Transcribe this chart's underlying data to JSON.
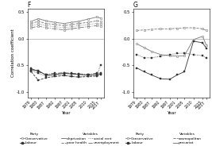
{
  "years": [
    1979,
    1983,
    1987,
    1992,
    1997,
    2001,
    2005,
    2010,
    2015,
    2017
  ],
  "panel_F_data": {
    "con_dep": [
      0.32,
      0.37,
      0.33,
      0.3,
      0.28,
      0.3,
      0.32,
      0.36,
      0.4,
      0.38
    ],
    "con_rent": [
      0.28,
      0.32,
      0.28,
      0.26,
      0.24,
      0.26,
      0.28,
      0.3,
      0.33,
      0.32
    ],
    "con_hlth": [
      0.24,
      0.27,
      0.24,
      0.22,
      0.2,
      0.22,
      0.24,
      0.26,
      0.28,
      0.27
    ],
    "con_unemp": [
      0.2,
      0.23,
      0.2,
      0.18,
      0.16,
      0.18,
      0.2,
      0.22,
      0.24,
      0.23
    ],
    "lab_dep": [
      -0.58,
      -0.6,
      -0.68,
      -0.67,
      -0.65,
      -0.66,
      -0.67,
      -0.68,
      -0.67,
      -0.66
    ],
    "lab_rent": [
      -0.62,
      -0.78,
      -0.73,
      -0.71,
      -0.69,
      -0.71,
      -0.72,
      -0.71,
      -0.7,
      -0.68
    ],
    "lab_hlth": [
      -0.6,
      -0.65,
      -0.7,
      -0.69,
      -0.68,
      -0.7,
      -0.71,
      -0.7,
      -0.69,
      -0.5
    ],
    "lab_unemp": [
      -0.56,
      -0.62,
      -0.67,
      -0.65,
      -0.64,
      -0.65,
      -0.66,
      -0.67,
      -0.65,
      -0.64
    ]
  },
  "panel_G_data": {
    "years_g": [
      1979,
      1983,
      1987,
      1992,
      1997,
      2001,
      2005,
      2010,
      2015,
      2017
    ],
    "con_cosm": [
      0.15,
      0.16,
      0.17,
      0.18,
      0.18,
      0.19,
      0.2,
      0.2,
      0.18,
      0.15
    ],
    "con_prec": [
      -0.1,
      -0.17,
      -0.24,
      -0.3,
      -0.32,
      -0.33,
      -0.32,
      -0.02,
      0.04,
      -0.12
    ],
    "lab_cosm": [
      -0.55,
      -0.62,
      -0.68,
      -0.75,
      -0.76,
      -0.68,
      -0.62,
      -0.05,
      -0.08,
      -0.18
    ],
    "lab_prec": [
      -0.3,
      -0.36,
      -0.36,
      -0.33,
      -0.3,
      -0.28,
      -0.27,
      -0.3,
      -0.32,
      -0.36
    ]
  },
  "colors": {
    "con_dark": "#777777",
    "con_light": "#bbbbbb",
    "lab_dark": "#333333",
    "lab_light": "#888888",
    "hline": "#aaaaaa"
  },
  "legend_F": {
    "party_title": "Party",
    "var_title": "Variables",
    "parties": [
      "Conservative",
      "Labour"
    ],
    "variables": [
      "deprivation",
      "poor health",
      "social rent",
      "unemployment"
    ]
  },
  "legend_G": {
    "party_title": "Party",
    "var_title": "Variables",
    "parties": [
      "Conservative",
      "Labour"
    ],
    "variables": [
      "cosmopolitan",
      "precariat"
    ]
  }
}
